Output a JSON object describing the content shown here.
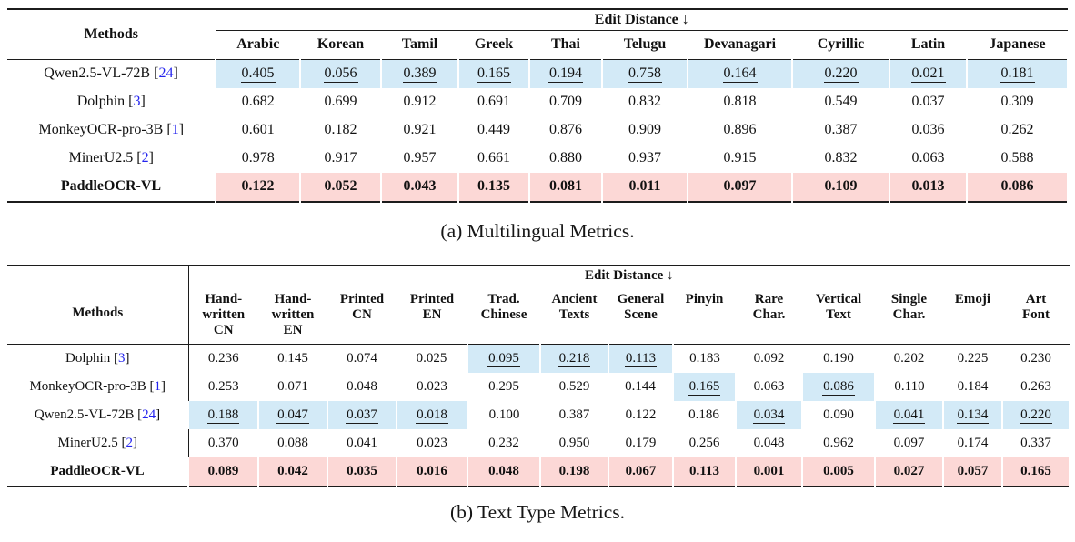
{
  "colors": {
    "highlight_blue": "#d3eaf7",
    "highlight_pink": "#fcd8d6",
    "cite_blue": "#2424ee"
  },
  "table_a": {
    "caption": "(a) Multilingual Metrics.",
    "methods_header": "Methods",
    "group_header": "Edit Distance ↓",
    "columns": [
      "Arabic",
      "Korean",
      "Tamil",
      "Greek",
      "Thai",
      "Telugu",
      "Devanagari",
      "Cyrillic",
      "Latin",
      "Japanese"
    ],
    "rows": [
      {
        "method": "Qwen2.5-VL-72B",
        "cite": "24",
        "bold": false,
        "highlight": "blue",
        "values": [
          "0.405",
          "0.056",
          "0.389",
          "0.165",
          "0.194",
          "0.758",
          "0.164",
          "0.220",
          "0.021",
          "0.181"
        ],
        "underline": [
          true,
          true,
          true,
          true,
          true,
          true,
          true,
          true,
          true,
          true
        ]
      },
      {
        "method": "Dolphin",
        "cite": "3",
        "bold": false,
        "highlight": null,
        "values": [
          "0.682",
          "0.699",
          "0.912",
          "0.691",
          "0.709",
          "0.832",
          "0.818",
          "0.549",
          "0.037",
          "0.309"
        ],
        "underline": [
          false,
          false,
          false,
          false,
          false,
          false,
          false,
          false,
          false,
          false
        ]
      },
      {
        "method": "MonkeyOCR-pro-3B",
        "cite": "1",
        "bold": false,
        "highlight": null,
        "values": [
          "0.601",
          "0.182",
          "0.921",
          "0.449",
          "0.876",
          "0.909",
          "0.896",
          "0.387",
          "0.036",
          "0.262"
        ],
        "underline": [
          false,
          false,
          false,
          false,
          false,
          false,
          false,
          false,
          false,
          false
        ]
      },
      {
        "method": "MinerU2.5",
        "cite": "2",
        "bold": false,
        "highlight": null,
        "values": [
          "0.978",
          "0.917",
          "0.957",
          "0.661",
          "0.880",
          "0.937",
          "0.915",
          "0.832",
          "0.063",
          "0.588"
        ],
        "underline": [
          false,
          false,
          false,
          false,
          false,
          false,
          false,
          false,
          false,
          false
        ]
      },
      {
        "method": "PaddleOCR-VL",
        "cite": null,
        "bold": true,
        "highlight": "pink",
        "values": [
          "0.122",
          "0.052",
          "0.043",
          "0.135",
          "0.081",
          "0.011",
          "0.097",
          "0.109",
          "0.013",
          "0.086"
        ],
        "underline": [
          false,
          false,
          false,
          false,
          false,
          false,
          false,
          false,
          false,
          false
        ]
      }
    ]
  },
  "table_b": {
    "caption": "(b) Text Type Metrics.",
    "methods_header": "Methods",
    "group_header": "Edit Distance ↓",
    "columns": [
      [
        "Hand-",
        "written",
        "CN"
      ],
      [
        "Hand-",
        "written",
        "EN"
      ],
      [
        "Printed",
        "CN"
      ],
      [
        "Printed",
        "EN"
      ],
      [
        "Trad.",
        "Chinese"
      ],
      [
        "Ancient",
        "Texts"
      ],
      [
        "General",
        "Scene"
      ],
      [
        "Pinyin"
      ],
      [
        "Rare",
        "Char."
      ],
      [
        "Vertical",
        "Text"
      ],
      [
        "Single",
        "Char."
      ],
      [
        "Emoji"
      ],
      [
        "Art",
        "Font"
      ]
    ],
    "rows": [
      {
        "method": "Dolphin",
        "cite": "3",
        "bold": false,
        "values": [
          "0.236",
          "0.145",
          "0.074",
          "0.025",
          "0.095",
          "0.218",
          "0.113",
          "0.183",
          "0.092",
          "0.190",
          "0.202",
          "0.225",
          "0.230"
        ],
        "cell_highlight": [
          null,
          null,
          null,
          null,
          "blue",
          "blue",
          "blue",
          null,
          null,
          null,
          null,
          null,
          null
        ],
        "underline": [
          false,
          false,
          false,
          false,
          true,
          true,
          true,
          false,
          false,
          false,
          false,
          false,
          false
        ]
      },
      {
        "method": "MonkeyOCR-pro-3B",
        "cite": "1",
        "bold": false,
        "values": [
          "0.253",
          "0.071",
          "0.048",
          "0.023",
          "0.295",
          "0.529",
          "0.144",
          "0.165",
          "0.063",
          "0.086",
          "0.110",
          "0.184",
          "0.263"
        ],
        "cell_highlight": [
          null,
          null,
          null,
          null,
          null,
          null,
          null,
          "blue",
          null,
          "blue",
          null,
          null,
          null
        ],
        "underline": [
          false,
          false,
          false,
          false,
          false,
          false,
          false,
          true,
          false,
          true,
          false,
          false,
          false
        ]
      },
      {
        "method": "Qwen2.5-VL-72B",
        "cite": "24",
        "bold": false,
        "values": [
          "0.188",
          "0.047",
          "0.037",
          "0.018",
          "0.100",
          "0.387",
          "0.122",
          "0.186",
          "0.034",
          "0.090",
          "0.041",
          "0.134",
          "0.220"
        ],
        "cell_highlight": [
          "blue",
          "blue",
          "blue",
          "blue",
          null,
          null,
          null,
          null,
          "blue",
          null,
          "blue",
          "blue",
          "blue"
        ],
        "underline": [
          true,
          true,
          true,
          true,
          false,
          false,
          false,
          false,
          true,
          false,
          true,
          true,
          true
        ]
      },
      {
        "method": "MinerU2.5",
        "cite": "2",
        "bold": false,
        "values": [
          "0.370",
          "0.088",
          "0.041",
          "0.023",
          "0.232",
          "0.950",
          "0.179",
          "0.256",
          "0.048",
          "0.962",
          "0.097",
          "0.174",
          "0.337"
        ],
        "cell_highlight": [
          null,
          null,
          null,
          null,
          null,
          null,
          null,
          null,
          null,
          null,
          null,
          null,
          null
        ],
        "underline": [
          false,
          false,
          false,
          false,
          false,
          false,
          false,
          false,
          false,
          false,
          false,
          false,
          false
        ]
      },
      {
        "method": "PaddleOCR-VL",
        "cite": null,
        "bold": true,
        "values": [
          "0.089",
          "0.042",
          "0.035",
          "0.016",
          "0.048",
          "0.198",
          "0.067",
          "0.113",
          "0.001",
          "0.005",
          "0.027",
          "0.057",
          "0.165"
        ],
        "cell_highlight": [
          "pink",
          "pink",
          "pink",
          "pink",
          "pink",
          "pink",
          "pink",
          "pink",
          "pink",
          "pink",
          "pink",
          "pink",
          "pink"
        ],
        "underline": [
          false,
          false,
          false,
          false,
          false,
          false,
          false,
          false,
          false,
          false,
          false,
          false,
          false
        ]
      }
    ]
  }
}
